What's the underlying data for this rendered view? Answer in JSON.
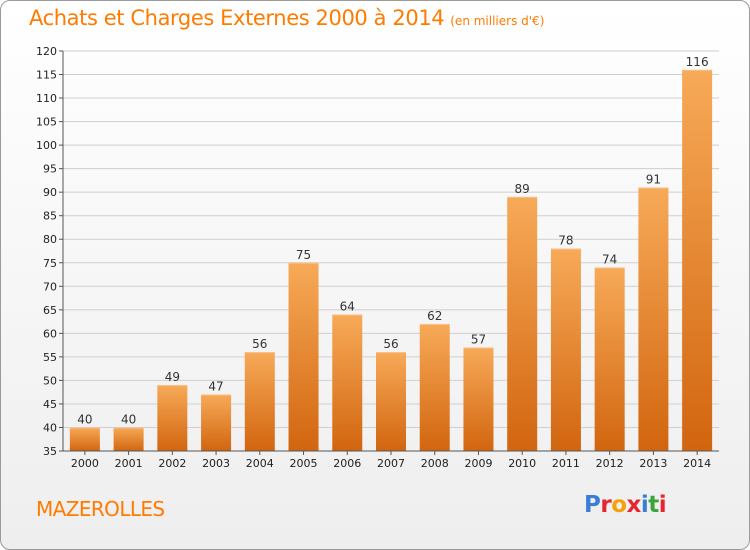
{
  "header": {
    "title": "Achats et Charges Externes 2000 à 2014",
    "subtitle": "(en milliers d'€)"
  },
  "footer": {
    "commune": "MAZEROLLES",
    "logo": "Proxiti",
    "logo_colors": [
      "#3a7fd5",
      "#e6262e",
      "#f5a10b",
      "#e6262e",
      "#3a7fd5",
      "#3aa53a",
      "#e6262e"
    ]
  },
  "colors": {
    "accent": "#ff7b00",
    "bar_top": "#f7aa58",
    "bar_bottom": "#d2650f",
    "grid": "#cfcfcf"
  },
  "chart_data": {
    "type": "bar",
    "title": "Achats et Charges Externes 2000 à 2014",
    "subtitle": "(en milliers d'€)",
    "categories": [
      "2000",
      "2001",
      "2002",
      "2003",
      "2004",
      "2005",
      "2006",
      "2007",
      "2008",
      "2009",
      "2010",
      "2011",
      "2012",
      "2013",
      "2014"
    ],
    "values": [
      40,
      40,
      49,
      47,
      56,
      75,
      64,
      56,
      62,
      57,
      89,
      78,
      74,
      91,
      116
    ],
    "ylim": [
      35,
      120
    ],
    "yticks": [
      35,
      40,
      45,
      50,
      55,
      60,
      65,
      70,
      75,
      80,
      85,
      90,
      95,
      100,
      105,
      110,
      115,
      120
    ],
    "grid": true
  }
}
